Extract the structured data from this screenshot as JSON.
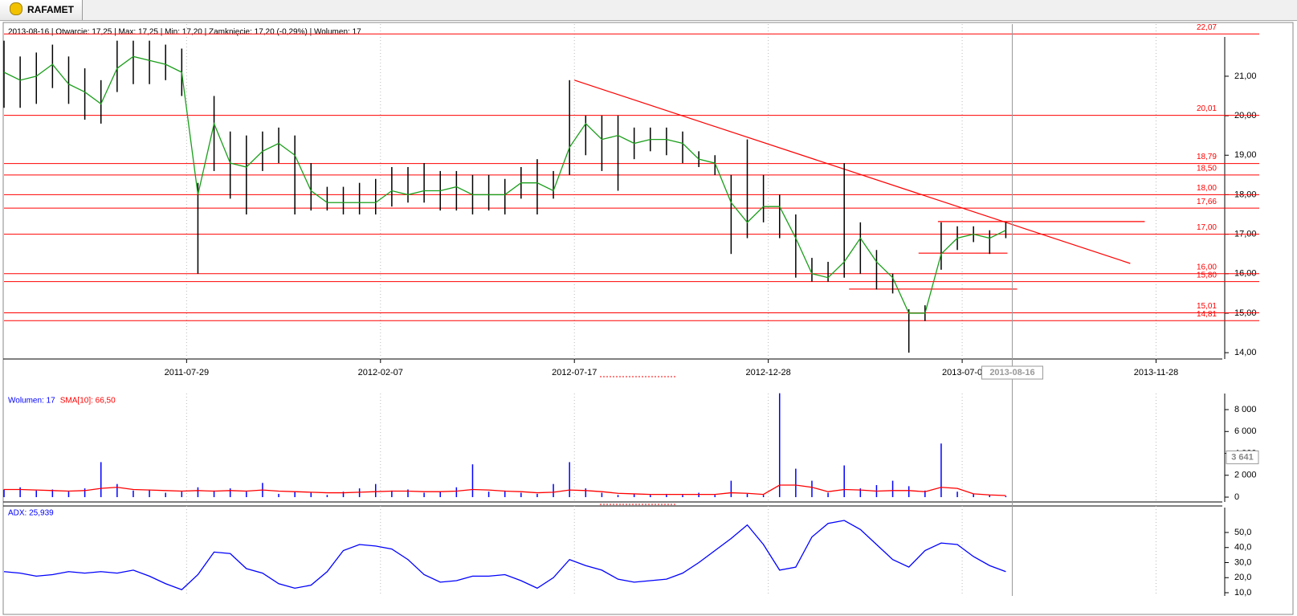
{
  "tab": {
    "title": "RAFAMET"
  },
  "chart_data": [
    {
      "type": "ohlc",
      "header": "2013-08-16 | Otwarcie: 17,25 | Max: 17,25 | Min: 17,20 | Zamknięcie: 17,20 (-0,29%)  | Wolumen: 17",
      "xlim": [
        0,
        753
      ],
      "xticks": [
        {
          "value": 113,
          "label": "2011-07-29"
        },
        {
          "value": 233,
          "label": "2012-02-07"
        },
        {
          "value": 353,
          "label": "2012-07-17"
        },
        {
          "value": 473,
          "label": "2012-12-28"
        },
        {
          "value": 593,
          "label": "2013-07-0"
        },
        {
          "value": 713,
          "label": "2013-11-28"
        }
      ],
      "ylim": [
        13.84,
        22.32
      ],
      "yticks": [
        {
          "value": 14,
          "label": "14,00"
        },
        {
          "value": 15,
          "label": "15,00"
        },
        {
          "value": 16,
          "label": "16,00"
        },
        {
          "value": 17,
          "label": "17,00"
        },
        {
          "value": 18,
          "label": "18,00"
        },
        {
          "value": 19,
          "label": "19,00"
        },
        {
          "value": 20,
          "label": "20,00"
        },
        {
          "value": 21,
          "label": "21,00"
        }
      ],
      "grid": "x",
      "bar_color": "#000000",
      "average_color": "#1a9e1a",
      "level_color": "#ff0000",
      "x": [
        0,
        10,
        20,
        30,
        40,
        50,
        60,
        70,
        80,
        90,
        100,
        110,
        120,
        130,
        140,
        150,
        160,
        170,
        180,
        190,
        200,
        210,
        220,
        230,
        240,
        250,
        260,
        270,
        280,
        290,
        300,
        310,
        320,
        330,
        340,
        350,
        360,
        370,
        380,
        390,
        400,
        410,
        420,
        430,
        440,
        450,
        460,
        470,
        480,
        490,
        500,
        510,
        520,
        530,
        540,
        550,
        560,
        570,
        580,
        590,
        600,
        610,
        620
      ],
      "high": [
        21.9,
        21.5,
        21.6,
        21.8,
        21.5,
        21.2,
        20.9,
        21.9,
        21.9,
        21.9,
        21.8,
        21.7,
        18.3,
        20.5,
        19.6,
        19.5,
        19.6,
        19.7,
        19.5,
        18.8,
        18.2,
        18.2,
        18.3,
        18.4,
        18.7,
        18.7,
        18.8,
        18.6,
        18.6,
        18.5,
        18.5,
        18.4,
        18.7,
        18.9,
        18.6,
        20.9,
        20.0,
        20.0,
        20.0,
        19.7,
        19.7,
        19.7,
        19.6,
        19.1,
        19.0,
        18.5,
        19.4,
        18.5,
        18.0,
        17.5,
        16.4,
        16.3,
        18.8,
        17.3,
        16.6,
        16.0,
        15.1,
        15.2,
        17.3,
        17.2,
        17.2,
        17.1,
        17.3
      ],
      "low": [
        20.2,
        20.2,
        20.3,
        20.7,
        20.3,
        19.9,
        19.8,
        20.6,
        20.8,
        20.8,
        20.9,
        20.5,
        16.0,
        18.6,
        17.9,
        17.5,
        18.6,
        18.8,
        17.5,
        17.6,
        17.6,
        17.5,
        17.5,
        17.5,
        17.7,
        17.8,
        17.8,
        17.6,
        17.6,
        17.5,
        17.6,
        17.5,
        17.9,
        17.5,
        17.9,
        18.5,
        19.0,
        18.6,
        18.1,
        18.9,
        19.1,
        19.0,
        18.8,
        18.7,
        18.5,
        16.5,
        16.9,
        17.3,
        16.9,
        15.9,
        15.8,
        15.8,
        15.9,
        16.0,
        15.6,
        15.5,
        14.0,
        14.8,
        16.1,
        16.6,
        16.8,
        16.5,
        16.9
      ],
      "average": [
        21.1,
        20.9,
        21.0,
        21.3,
        20.8,
        20.6,
        20.3,
        21.2,
        21.5,
        21.4,
        21.3,
        21.1,
        18.0,
        19.8,
        18.8,
        18.7,
        19.1,
        19.3,
        19.0,
        18.1,
        17.8,
        17.8,
        17.8,
        17.8,
        18.1,
        18.0,
        18.1,
        18.1,
        18.2,
        18.0,
        18.0,
        18.0,
        18.3,
        18.3,
        18.1,
        19.2,
        19.8,
        19.4,
        19.5,
        19.3,
        19.4,
        19.4,
        19.3,
        18.9,
        18.8,
        17.8,
        17.3,
        17.7,
        17.7,
        16.9,
        16.0,
        15.9,
        16.3,
        16.9,
        16.3,
        15.9,
        15.0,
        15.0,
        16.5,
        16.9,
        17.0,
        16.9,
        17.1
      ],
      "levels": [
        {
          "value": 22.07,
          "label": "22,07"
        },
        {
          "value": 20.01,
          "label": "20,01"
        },
        {
          "value": 18.79,
          "label": "18,79"
        },
        {
          "value": 18.5,
          "label": "18,50"
        },
        {
          "value": 18.0,
          "label": "18,00"
        },
        {
          "value": 17.66,
          "label": "17,66"
        },
        {
          "value": 17.0,
          "label": "17,00"
        },
        {
          "value": 16.0,
          "label": "16,00"
        },
        {
          "value": 15.8,
          "label": "15,80"
        },
        {
          "value": 15.01,
          "label": "15,01"
        },
        {
          "value": 14.81,
          "label": "14,81"
        }
      ],
      "trendlines": [
        {
          "x": [
            353,
            697
          ],
          "y": [
            20.9,
            16.26
          ]
        },
        {
          "x": [
            578,
            706
          ],
          "y": [
            17.32,
            17.32
          ]
        },
        {
          "x": [
            566,
            621
          ],
          "y": [
            16.52,
            16.52
          ]
        },
        {
          "x": [
            523,
            627
          ],
          "y": [
            15.61,
            15.61
          ]
        }
      ],
      "cursor": {
        "x": 624,
        "label": "2013-08-16"
      }
    },
    {
      "type": "bar",
      "ylim": [
        -440,
        9470
      ],
      "yticks": [
        0,
        {
          "value": 2000,
          "label": "2 000"
        },
        {
          "value": 4000,
          "label": "4 000"
        },
        {
          "value": 6000,
          "label": "6 000"
        },
        {
          "value": 8000,
          "label": "8 000"
        }
      ],
      "series": [
        {
          "name": "Wolumen: 17",
          "color": "#0000ff",
          "type": "bar",
          "values": [
            700,
            900,
            600,
            700,
            500,
            800,
            3200,
            1200,
            600,
            700,
            400,
            500,
            900,
            600,
            800,
            500,
            1300,
            300,
            500,
            400,
            200,
            500,
            800,
            1200,
            600,
            700,
            400,
            500,
            900,
            3000,
            500,
            600,
            400,
            300,
            1200,
            3200,
            800,
            400,
            200,
            300,
            200,
            300,
            200,
            400,
            200,
            1500,
            300,
            200,
            9500,
            2600,
            1500,
            400,
            2900,
            800,
            1100,
            1500,
            1000,
            600,
            4900,
            500,
            300,
            200,
            100
          ]
        },
        {
          "name": "SMA[10]: 66,50",
          "color": "#ff0000",
          "type": "line",
          "values": [
            700,
            700,
            650,
            600,
            550,
            600,
            800,
            900,
            700,
            650,
            600,
            550,
            600,
            550,
            600,
            550,
            650,
            550,
            500,
            450,
            400,
            400,
            450,
            500,
            550,
            550,
            500,
            500,
            550,
            700,
            650,
            550,
            500,
            400,
            450,
            650,
            600,
            500,
            350,
            300,
            250,
            250,
            250,
            250,
            250,
            400,
            350,
            250,
            1100,
            1100,
            900,
            500,
            700,
            650,
            550,
            600,
            600,
            500,
            900,
            800,
            300,
            200,
            150
          ]
        }
      ],
      "cursor_value": {
        "value": 3641,
        "label": "3 641"
      }
    },
    {
      "type": "line",
      "ylim": [
        7.87,
        67.6
      ],
      "yticks": [
        {
          "value": 10,
          "label": "10,0"
        },
        {
          "value": 20,
          "label": "20,0"
        },
        {
          "value": 30,
          "label": "30,0"
        },
        {
          "value": 40,
          "label": "40,0"
        },
        {
          "value": 50,
          "label": "50,0"
        }
      ],
      "series": [
        {
          "name": "ADX: 25,939",
          "color": "#0000ff",
          "type": "line",
          "values": [
            24,
            23,
            21,
            22,
            24,
            23,
            24,
            23,
            25,
            21,
            16,
            12,
            22,
            37,
            36,
            26,
            23,
            16,
            13,
            15,
            24,
            38,
            42,
            41,
            39,
            32,
            22,
            17,
            18,
            21,
            21,
            22,
            18,
            13,
            20,
            32,
            28,
            25,
            19,
            17,
            18,
            19,
            23,
            30,
            38,
            46,
            55,
            42,
            25,
            27,
            47,
            56,
            58,
            52,
            42,
            32,
            27,
            38,
            43,
            42,
            34,
            28,
            24
          ]
        }
      ]
    }
  ]
}
